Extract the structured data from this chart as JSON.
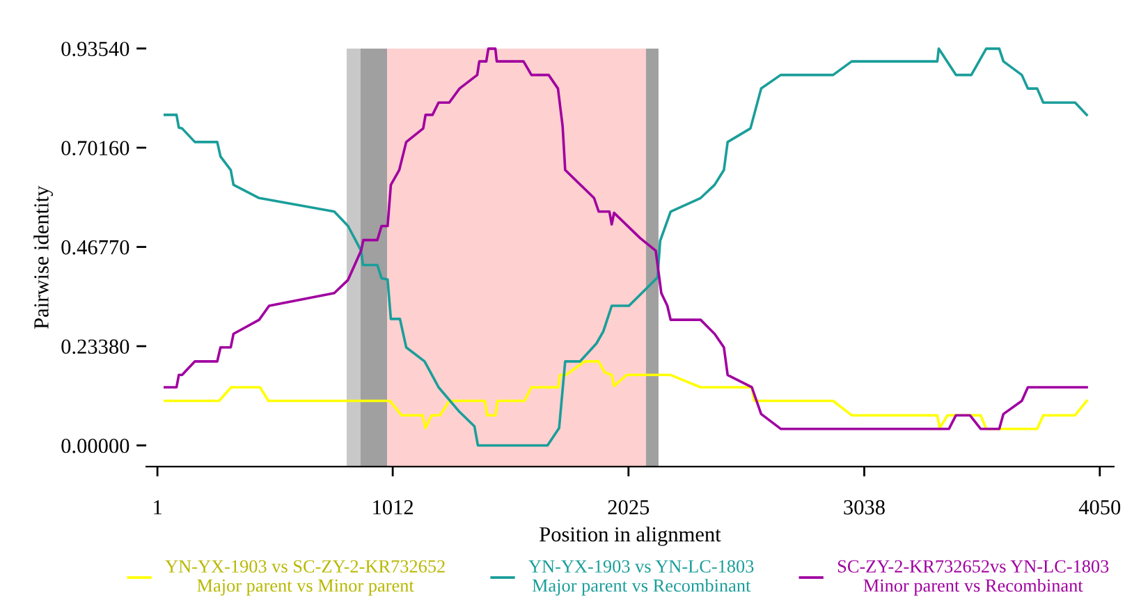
{
  "chart_data": {
    "type": "line",
    "xlabel": "Position in alignment",
    "ylabel": "Pairwise identity",
    "xlim": [
      -47,
      4110
    ],
    "ylim": [
      -0.05,
      0.9354
    ],
    "xticks": [
      1,
      1012,
      2025,
      3038,
      4050
    ],
    "yticks": [
      {
        "value": 0,
        "label": "0.00000"
      },
      {
        "value": 0.2338,
        "label": "0.23380"
      },
      {
        "value": 0.4677,
        "label": "0.46770"
      },
      {
        "value": 0.7016,
        "label": "0.70160"
      },
      {
        "value": 0.9354,
        "label": "0.93540"
      }
    ],
    "grid": false,
    "legend": "bottom",
    "line_style": "solid",
    "marker": "none",
    "bands": [
      {
        "axis": "x",
        "from": 814,
        "to": 874,
        "color": "#c8c8c8"
      },
      {
        "axis": "x",
        "from": 874,
        "to": 988,
        "color": "#a0a0a0"
      },
      {
        "axis": "x",
        "from": 988,
        "to": 2100,
        "color": "#ffd0d0"
      },
      {
        "axis": "x",
        "from": 2100,
        "to": 2154,
        "color": "#a0a0a0"
      }
    ],
    "series": [
      {
        "name": "YN-YX-1903 vs SC-ZY-2-KR732652\nMajor parent vs Minor parent",
        "color": "#ffff00",
        "x": [
          33,
          266,
          318,
          442,
          478,
          1000,
          1050,
          1140,
          1153,
          1179,
          1215,
          1255,
          1408,
          1418,
          1454,
          1462,
          1578,
          1608,
          1723,
          1731,
          1757,
          1837,
          1897,
          1923,
          1953,
          1963,
          2017,
          2206,
          2335,
          2555,
          2565,
          2904,
          2984,
          3352,
          3362,
          3396,
          3538,
          3562,
          3781,
          3807,
          3944,
          3994
        ],
        "values": [
          0.105,
          0.105,
          0.137,
          0.137,
          0.105,
          0.105,
          0.071,
          0.071,
          0.041,
          0.071,
          0.071,
          0.105,
          0.105,
          0.071,
          0.071,
          0.105,
          0.105,
          0.137,
          0.137,
          0.166,
          0.166,
          0.198,
          0.198,
          0.172,
          0.166,
          0.14,
          0.166,
          0.166,
          0.137,
          0.137,
          0.105,
          0.105,
          0.071,
          0.071,
          0.041,
          0.071,
          0.071,
          0.039,
          0.039,
          0.071,
          0.071,
          0.105
        ]
      },
      {
        "name": "YN-YX-1903 vs YN-LC-1803\nMajor parent vs Recombinant",
        "color": "#1a9e9a",
        "x": [
          33,
          83,
          93,
          107,
          162,
          258,
          272,
          316,
          328,
          438,
          761,
          820,
          876,
          884,
          946,
          964,
          990,
          1004,
          1043,
          1070,
          1149,
          1209,
          1299,
          1363,
          1378,
          1677,
          1727,
          1753,
          1817,
          1887,
          1917,
          1953,
          2027,
          2150,
          2161,
          2206,
          2335,
          2395,
          2435,
          2451,
          2549,
          2595,
          2679,
          2904,
          2984,
          3352,
          3358,
          3432,
          3498,
          3562,
          3618,
          3636,
          3715,
          3741,
          3781,
          3807,
          3944,
          3994
        ],
        "values": [
          0.779,
          0.779,
          0.749,
          0.747,
          0.715,
          0.715,
          0.681,
          0.649,
          0.614,
          0.583,
          0.551,
          0.517,
          0.459,
          0.425,
          0.425,
          0.394,
          0.391,
          0.298,
          0.298,
          0.231,
          0.198,
          0.137,
          0.079,
          0.045,
          0,
          0,
          0.041,
          0.198,
          0.198,
          0.24,
          0.269,
          0.329,
          0.329,
          0.396,
          0.482,
          0.551,
          0.583,
          0.614,
          0.649,
          0.715,
          0.747,
          0.841,
          0.873,
          0.873,
          0.905,
          0.905,
          0.935,
          0.873,
          0.873,
          0.935,
          0.935,
          0.905,
          0.873,
          0.841,
          0.841,
          0.808,
          0.808,
          0.779
        ]
      },
      {
        "name": "SC-ZY-2-KR732652vs YN-LC-1803\nMinor parent vs Recombinant",
        "color": "#a000a0",
        "x": [
          33,
          83,
          93,
          107,
          162,
          258,
          272,
          316,
          328,
          438,
          481,
          761,
          820,
          876,
          886,
          946,
          964,
          990,
          1004,
          1040,
          1070,
          1143,
          1153,
          1183,
          1209,
          1255,
          1299,
          1375,
          1384,
          1414,
          1423,
          1453,
          1459,
          1574,
          1608,
          1682,
          1722,
          1742,
          1753,
          1877,
          1897,
          1943,
          1953,
          1963,
          2076,
          2142,
          2166,
          2192,
          2206,
          2335,
          2395,
          2435,
          2451,
          2555,
          2595,
          2679,
          3402,
          3432,
          3492,
          3538,
          3618,
          3636,
          3715,
          3741,
          3994
        ],
        "values": [
          0.137,
          0.137,
          0.166,
          0.166,
          0.198,
          0.198,
          0.231,
          0.231,
          0.263,
          0.296,
          0.329,
          0.359,
          0.39,
          0.459,
          0.484,
          0.484,
          0.517,
          0.517,
          0.614,
          0.649,
          0.715,
          0.747,
          0.779,
          0.779,
          0.808,
          0.808,
          0.841,
          0.873,
          0.905,
          0.905,
          0.935,
          0.935,
          0.905,
          0.905,
          0.873,
          0.873,
          0.841,
          0.752,
          0.649,
          0.583,
          0.551,
          0.551,
          0.521,
          0.548,
          0.488,
          0.459,
          0.359,
          0.329,
          0.296,
          0.296,
          0.263,
          0.231,
          0.166,
          0.137,
          0.074,
          0.039,
          0.039,
          0.071,
          0.071,
          0.039,
          0.039,
          0.074,
          0.105,
          0.137,
          0.137
        ]
      }
    ]
  }
}
